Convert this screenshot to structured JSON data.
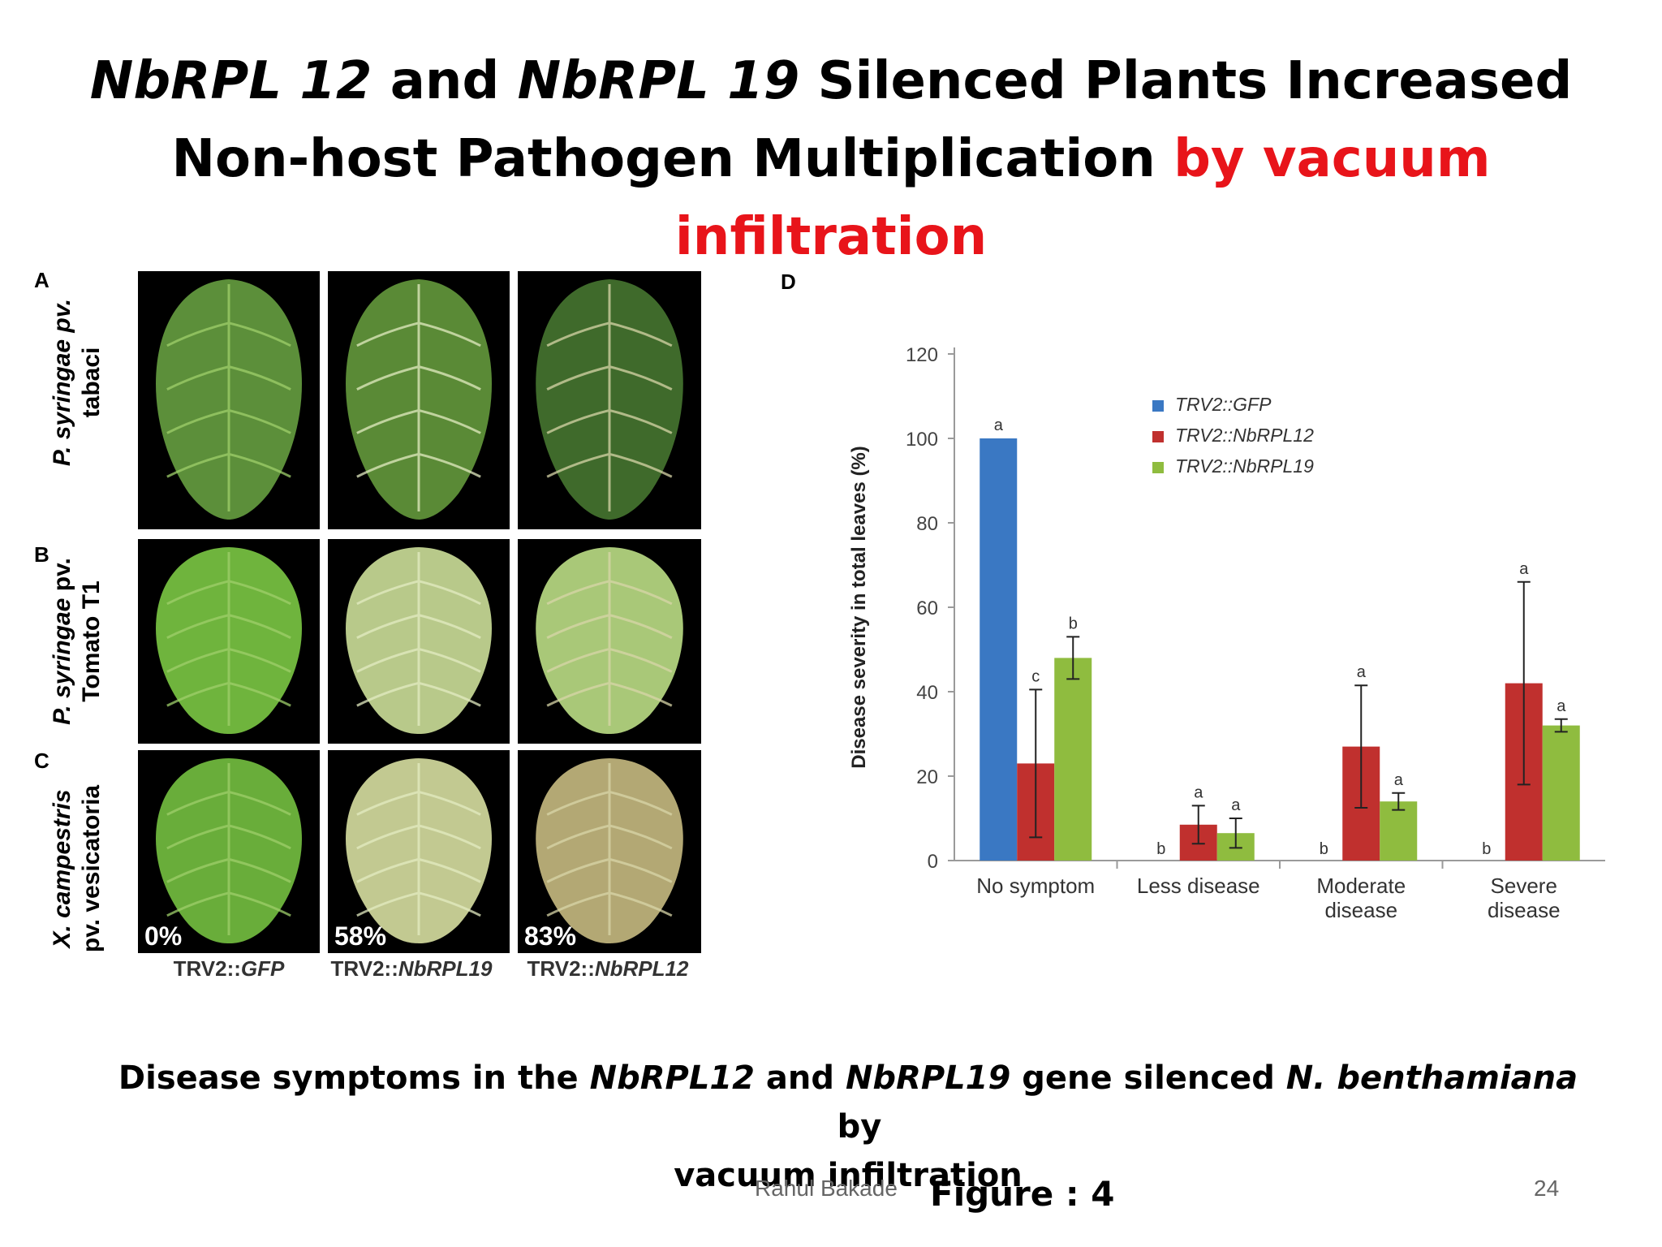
{
  "slide": {
    "title": {
      "part1": "NbRPL 12",
      "part2": " and ",
      "part3": "NbRPL 19",
      "part4": " Silenced Plants Increased",
      "part5": "Non-host Pathogen Multiplication ",
      "part6": "by vacuum",
      "part7": "infiltration"
    },
    "colors": {
      "title_highlight": "#e8141a"
    },
    "caption": {
      "part1": "Disease symptoms in the ",
      "part2": "NbRPL12",
      "part3": " and ",
      "part4": "NbRPL19",
      "part5": " gene silenced ",
      "part6": "N. benthamiana",
      "part7": "  by",
      "part8": "vacuum infiltration"
    },
    "author": "Rahul Bakade",
    "figure_label": "Figure : 4",
    "page_number": "24"
  },
  "leaf_panel": {
    "letters": {
      "a": "A",
      "b": "B",
      "c": "C",
      "d": "D"
    },
    "rows": [
      {
        "line1": "P. syringae pv.",
        "line2": "tabaci"
      },
      {
        "line1_italic": "P. syringae",
        "line1_rest": " pv.",
        "line2": "Tomato T1"
      },
      {
        "line1": "X. campestris",
        "line2": "pv. vesicatoria"
      }
    ],
    "columns": [
      {
        "prefix": "TRV2::",
        "gene": "GFP"
      },
      {
        "prefix": "TRV2::",
        "gene": "NbRPL19"
      },
      {
        "prefix": "TRV2::",
        "gene": "NbRPL12"
      }
    ],
    "percentages": [
      "0%",
      "58%",
      "83%"
    ]
  },
  "chart_data": {
    "type": "bar",
    "ylabel": "Disease severity in total leaves (%)",
    "ylim": [
      0,
      120
    ],
    "yticks": [
      0,
      20,
      40,
      60,
      80,
      100,
      120
    ],
    "grid": false,
    "legend_position": "top-center",
    "categories": [
      "No symptom",
      "Less disease",
      "Moderate|disease",
      "Severe|disease"
    ],
    "series": [
      {
        "name": "TRV2::GFP",
        "color": "#3a78c3",
        "values": [
          100,
          0,
          0,
          0
        ],
        "errors": [
          0,
          0,
          0,
          0
        ],
        "letters": [
          "a",
          "b",
          "b",
          "b"
        ]
      },
      {
        "name": "TRV2::NbRPL12",
        "color": "#c0302e",
        "values": [
          23,
          8.5,
          27,
          42
        ],
        "errors": [
          17.5,
          4.5,
          14.5,
          24
        ],
        "letters": [
          "c",
          "a",
          "a",
          "a"
        ]
      },
      {
        "name": "TRV2::NbRPL19",
        "color": "#8fbc3f",
        "values": [
          48,
          6.5,
          14,
          32
        ],
        "errors": [
          5,
          3.5,
          2,
          1.5
        ],
        "letters": [
          "b",
          "a",
          "a",
          "a"
        ]
      }
    ]
  }
}
